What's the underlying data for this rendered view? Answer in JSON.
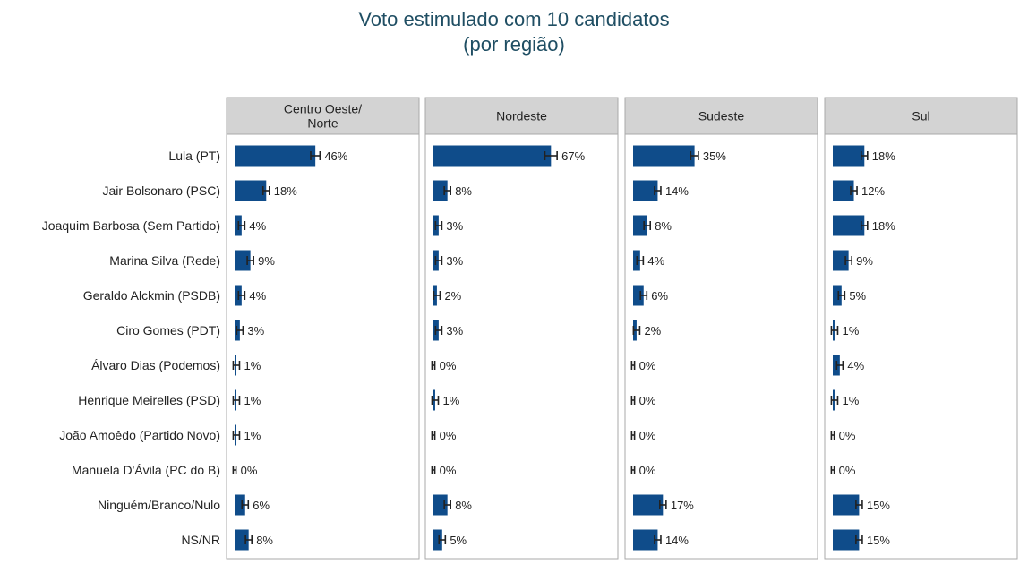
{
  "chart_data": {
    "type": "bar",
    "orientation": "horizontal",
    "title": "Voto estimulado com 10 candidatos",
    "subtitle": "(por região)",
    "categories": [
      "Lula (PT)",
      "Jair Bolsonaro (PSC)",
      "Joaquim Barbosa (Sem Partido)",
      "Marina Silva (Rede)",
      "Geraldo Alckmin (PSDB)",
      "Ciro Gomes (PDT)",
      "Álvaro Dias (Podemos)",
      "Henrique Meirelles (PSD)",
      "João Amoêdo (Partido Novo)",
      "Manuela D'Ávila (PC do B)",
      "Ninguém/Branco/Nulo",
      "NS/NR"
    ],
    "panels": [
      {
        "name": "Centro Oeste/\nNorte",
        "name_lines": [
          "Centro Oeste/",
          "Norte"
        ],
        "values": [
          46,
          18,
          4,
          9,
          4,
          3,
          1,
          1,
          1,
          0,
          6,
          8
        ],
        "labels": [
          "46%",
          "18%",
          "4%",
          "9%",
          "4%",
          "3%",
          "1%",
          "1%",
          "1%",
          "0%",
          "6%",
          "8%"
        ]
      },
      {
        "name": "Nordeste",
        "name_lines": [
          "Nordeste"
        ],
        "values": [
          67,
          8,
          3,
          3,
          2,
          3,
          0,
          1,
          0,
          0,
          8,
          5
        ],
        "labels": [
          "67%",
          "8%",
          "3%",
          "3%",
          "2%",
          "3%",
          "0%",
          "1%",
          "0%",
          "0%",
          "8%",
          "5%"
        ]
      },
      {
        "name": "Sudeste",
        "name_lines": [
          "Sudeste"
        ],
        "values": [
          35,
          14,
          8,
          4,
          6,
          2,
          0,
          0,
          0,
          0,
          17,
          14
        ],
        "labels": [
          "35%",
          "14%",
          "8%",
          "4%",
          "6%",
          "2%",
          "0%",
          "0%",
          "0%",
          "0%",
          "17%",
          "14%"
        ]
      },
      {
        "name": "Sul",
        "name_lines": [
          "Sul"
        ],
        "values": [
          18,
          12,
          18,
          9,
          5,
          1,
          4,
          1,
          0,
          0,
          15,
          15
        ],
        "labels": [
          "18%",
          "12%",
          "18%",
          "9%",
          "5%",
          "1%",
          "4%",
          "1%",
          "0%",
          "0%",
          "15%",
          "15%"
        ]
      }
    ],
    "xlim": [
      0,
      80
    ],
    "error_bars": true,
    "grid": false,
    "legend": "none",
    "colors": {
      "bar": "#0f4c8a",
      "error_bar": "#222222",
      "panel_header": "#d3d3d3",
      "panel_border": "#aaaaaa",
      "title": "#1f4e63",
      "text": "#222222"
    }
  }
}
